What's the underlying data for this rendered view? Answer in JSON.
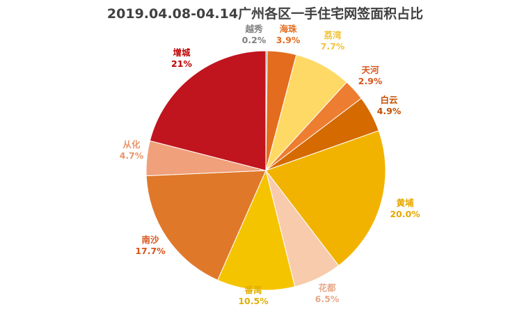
{
  "chart_data": {
    "type": "pie",
    "title": "2019.04.08-04.14广州各区一手住宅网签面积占比",
    "start_angle_deg": 0,
    "direction": "clockwise",
    "legend": "none",
    "slices": [
      {
        "name": "越秀",
        "value": 0.2,
        "label": "0.2%",
        "color": "#9A9A9A",
        "label_color": "#7F7F7F"
      },
      {
        "name": "海珠",
        "value": 3.9,
        "label": "3.9%",
        "color": "#E36C1E",
        "label_color": "#E36C1E"
      },
      {
        "name": "荔湾",
        "value": 7.7,
        "label": "7.7%",
        "color": "#FFD966",
        "label_color": "#F2C43A"
      },
      {
        "name": "天河",
        "value": 2.9,
        "label": "2.9%",
        "color": "#ED7D31",
        "label_color": "#D9541A"
      },
      {
        "name": "白云",
        "value": 4.9,
        "label": "4.9%",
        "color": "#D46A00",
        "label_color": "#C05000"
      },
      {
        "name": "黄埔",
        "value": 20.0,
        "label": "20.0%",
        "color": "#F2B300",
        "label_color": "#E6A800"
      },
      {
        "name": "花都",
        "value": 6.5,
        "label": "6.5%",
        "color": "#F8CBAD",
        "label_color": "#E8A88A"
      },
      {
        "name": "番禺",
        "value": 10.5,
        "label": "10.5%",
        "color": "#F5C400",
        "label_color": "#E0B000"
      },
      {
        "name": "南沙",
        "value": 17.7,
        "label": "17.7%",
        "color": "#E0782A",
        "label_color": "#D9541A"
      },
      {
        "name": "从化",
        "value": 4.7,
        "label": "4.7%",
        "color": "#F0A07A",
        "label_color": "#E8956A"
      },
      {
        "name": "增城",
        "value": 21,
        "label": "21%",
        "color": "#C0141E",
        "label_color": "#C00000"
      }
    ]
  }
}
